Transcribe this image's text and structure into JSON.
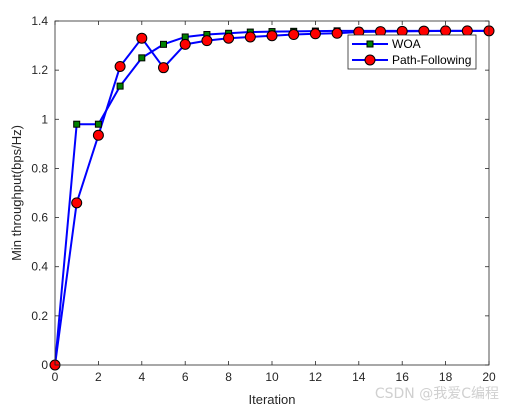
{
  "chart_data": {
    "type": "line",
    "xlabel": "Iteration",
    "ylabel": "Min throughput(bps/Hz)",
    "xlim": [
      0,
      20
    ],
    "ylim": [
      0,
      1.4
    ],
    "xticks": [
      0,
      2,
      4,
      6,
      8,
      10,
      12,
      14,
      16,
      18,
      20
    ],
    "yticks": [
      0,
      0.2,
      0.4,
      0.6,
      0.8,
      1,
      1.2,
      1.4
    ],
    "grid": false,
    "legend_position": "top-right",
    "x": [
      0,
      1,
      2,
      3,
      4,
      5,
      6,
      7,
      8,
      9,
      10,
      11,
      12,
      13,
      14,
      15,
      16,
      17,
      18,
      19,
      20
    ],
    "series": [
      {
        "name": "WOA",
        "line_color": "#0000ff",
        "marker": "square",
        "marker_fill": "#008000",
        "marker_edge": "#000000",
        "values": [
          0.0,
          0.98,
          0.98,
          1.135,
          1.25,
          1.305,
          1.335,
          1.345,
          1.35,
          1.355,
          1.357,
          1.358,
          1.359,
          1.36,
          1.36,
          1.36,
          1.36,
          1.36,
          1.36,
          1.36,
          1.36
        ]
      },
      {
        "name": "Path-Following",
        "line_color": "#0000ff",
        "marker": "circle",
        "marker_fill": "#ff0000",
        "marker_edge": "#000000",
        "values": [
          0.0,
          0.66,
          0.935,
          1.215,
          1.33,
          1.21,
          1.305,
          1.32,
          1.33,
          1.335,
          1.34,
          1.345,
          1.348,
          1.35,
          1.355,
          1.357,
          1.358,
          1.359,
          1.36,
          1.36,
          1.36
        ]
      }
    ]
  },
  "watermark": "CSDN @我爱C编程"
}
